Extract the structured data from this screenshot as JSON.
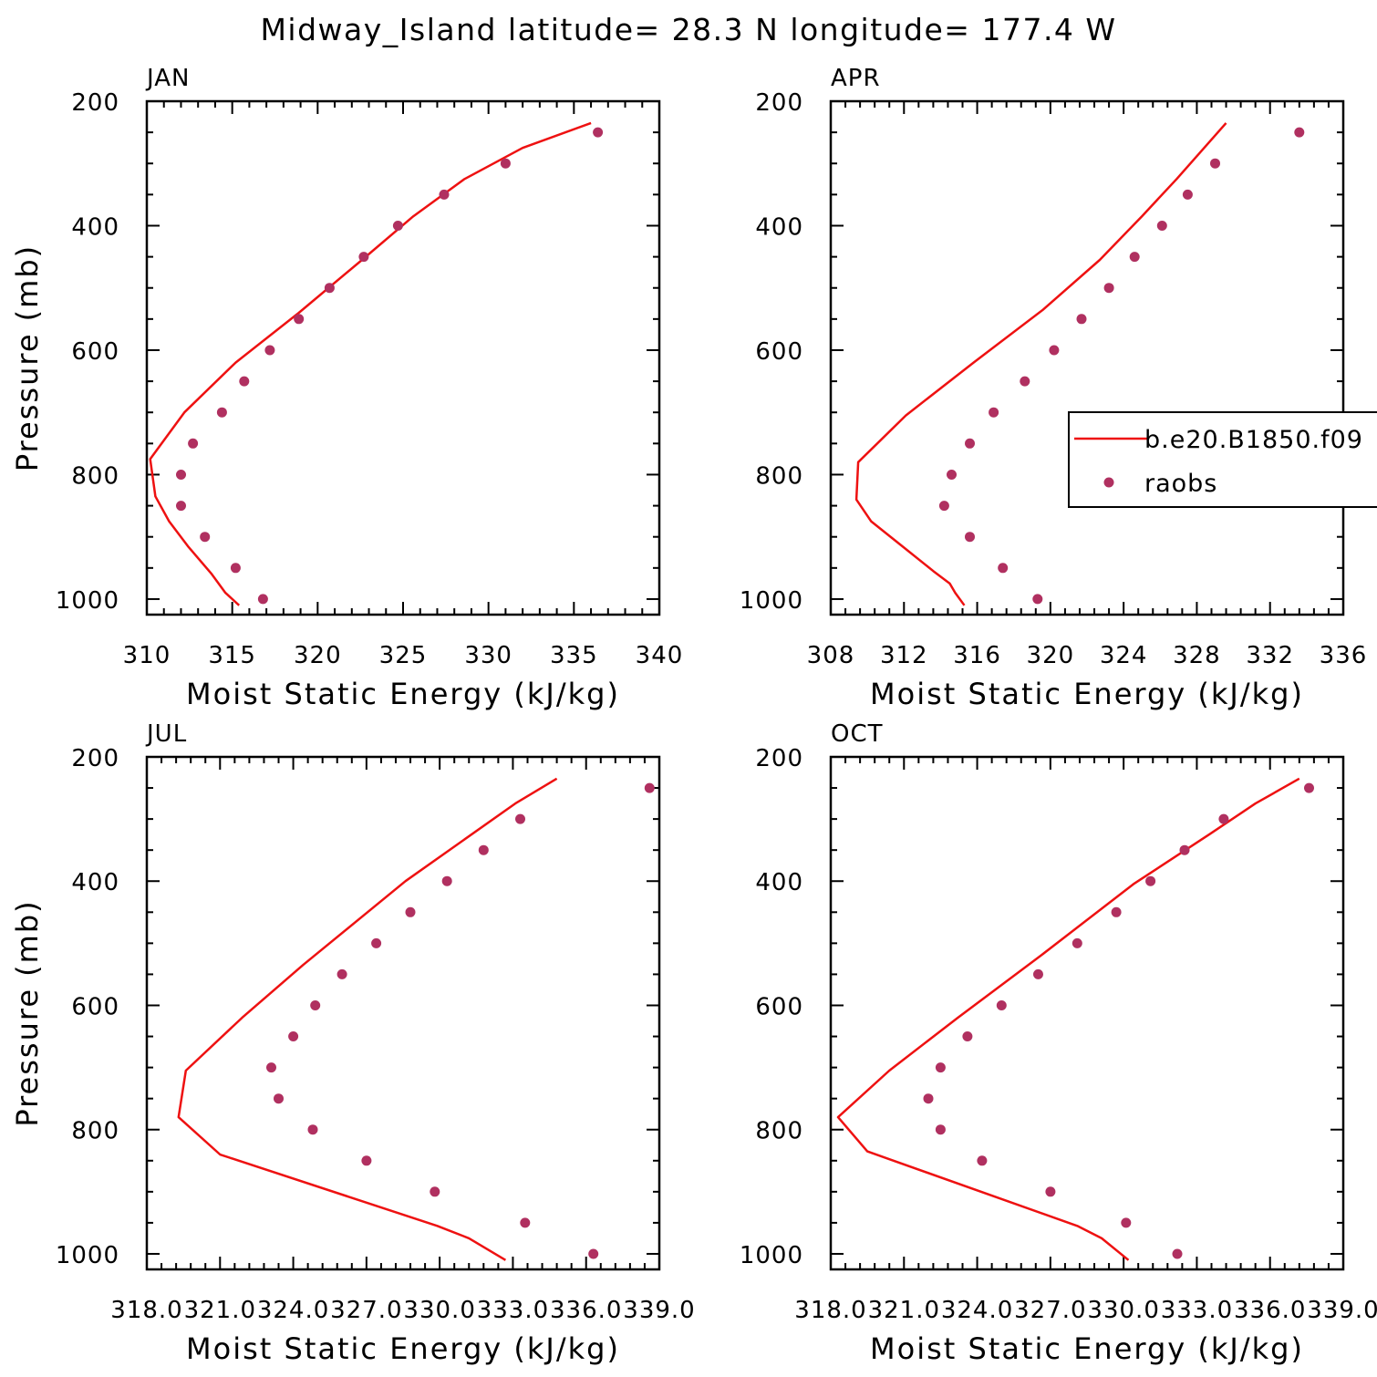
{
  "figure_title": "Midway_Island  latitude= 28.3 N longitude= 177.4 W",
  "colors": {
    "model": "#ee1111",
    "obs": "#b03060",
    "axis": "#000000"
  },
  "legend": {
    "model_label": "b.e20.B1850.f09",
    "obs_label": "raobs"
  },
  "chart_data": [
    {
      "type": "line",
      "panel_label": "JAN",
      "xlabel": "Moist Static Energy (kJ/kg)",
      "ylabel": "Pressure (mb)",
      "xlim": [
        310,
        340
      ],
      "ylim": [
        200,
        1025
      ],
      "x_ticks": [
        "310",
        "315",
        "320",
        "325",
        "330",
        "335",
        "340"
      ],
      "y_ticks": [
        "200",
        "400",
        "600",
        "800",
        "1000"
      ],
      "series": [
        {
          "name": "b.e20.B1850.f09",
          "kind": "line",
          "x": [
            315.4,
            314.6,
            313.8,
            312.4,
            311.3,
            310.5,
            310.2,
            312.2,
            315.2,
            318.9,
            322.6,
            325.6,
            328.6,
            332.0,
            336.0
          ],
          "y": [
            1010,
            990,
            960,
            915,
            875,
            835,
            775,
            700,
            620,
            540,
            455,
            385,
            325,
            275,
            235
          ]
        },
        {
          "name": "raobs",
          "kind": "points",
          "x": [
            316.8,
            315.2,
            313.4,
            312.0,
            312.0,
            312.7,
            314.4,
            315.7,
            317.2,
            318.9,
            320.7,
            322.7,
            324.7,
            327.4,
            331.0,
            336.4
          ],
          "y": [
            1000,
            950,
            900,
            850,
            800,
            750,
            700,
            650,
            600,
            550,
            500,
            450,
            400,
            350,
            300,
            250
          ]
        }
      ]
    },
    {
      "type": "line",
      "panel_label": "APR",
      "xlabel": "Moist Static Energy (kJ/kg)",
      "ylabel": "",
      "xlim": [
        308,
        336
      ],
      "ylim": [
        200,
        1025
      ],
      "x_ticks": [
        "308",
        "312",
        "316",
        "320",
        "324",
        "328",
        "332",
        "336"
      ],
      "y_ticks": [
        "200",
        "400",
        "600",
        "800",
        "1000"
      ],
      "series": [
        {
          "name": "b.e20.B1850.f09",
          "kind": "line",
          "x": [
            315.3,
            314.8,
            314.5,
            313.6,
            311.9,
            310.2,
            309.4,
            309.5,
            312.1,
            315.8,
            319.6,
            322.7,
            325.0,
            326.9,
            329.6
          ],
          "y": [
            1010,
            990,
            975,
            955,
            915,
            875,
            840,
            780,
            705,
            620,
            535,
            455,
            385,
            325,
            235
          ]
        },
        {
          "name": "raobs",
          "kind": "points",
          "x": [
            319.3,
            317.4,
            315.6,
            314.2,
            314.6,
            315.6,
            316.9,
            318.6,
            320.2,
            321.7,
            323.2,
            324.6,
            326.1,
            327.5,
            329.0,
            333.6
          ],
          "y": [
            1000,
            950,
            900,
            850,
            800,
            750,
            700,
            650,
            600,
            550,
            500,
            450,
            400,
            350,
            300,
            250
          ]
        }
      ]
    },
    {
      "type": "line",
      "panel_label": "JUL",
      "xlabel": "Moist Static Energy (kJ/kg)",
      "ylabel": "Pressure (mb)",
      "xlim": [
        318.0,
        339.0
      ],
      "ylim": [
        200,
        1025
      ],
      "x_ticks": [
        "318.0",
        "321.0",
        "324.0",
        "327.0",
        "330.0",
        "333.0",
        "336.0",
        "339.0"
      ],
      "y_ticks": [
        "200",
        "400",
        "600",
        "800",
        "1000"
      ],
      "series": [
        {
          "name": "b.e20.B1850.f09",
          "kind": "line",
          "x": [
            332.7,
            331.2,
            329.9,
            321.0,
            319.3,
            319.6,
            321.9,
            324.4,
            328.6,
            333.1,
            334.8
          ],
          "y": [
            1010,
            975,
            955,
            840,
            780,
            705,
            620,
            535,
            400,
            275,
            235
          ]
        },
        {
          "name": "raobs",
          "kind": "points",
          "x": [
            336.3,
            333.5,
            329.8,
            327.0,
            324.8,
            323.4,
            323.1,
            324.0,
            324.9,
            326.0,
            327.4,
            328.8,
            330.3,
            331.8,
            333.3,
            338.6
          ],
          "y": [
            1000,
            950,
            900,
            850,
            800,
            750,
            700,
            650,
            600,
            550,
            500,
            450,
            400,
            350,
            300,
            250
          ]
        }
      ]
    },
    {
      "type": "line",
      "panel_label": "OCT",
      "xlabel": "Moist Static Energy (kJ/kg)",
      "ylabel": "",
      "xlim": [
        318.0,
        339.0
      ],
      "ylim": [
        200,
        1025
      ],
      "x_ticks": [
        "318.0",
        "321.0",
        "324.0",
        "327.0",
        "330.0",
        "333.0",
        "336.0",
        "339.0"
      ],
      "y_ticks": [
        "200",
        "400",
        "600",
        "800",
        "1000"
      ],
      "series": [
        {
          "name": "b.e20.B1850.f09",
          "kind": "line",
          "x": [
            330.2,
            329.1,
            328.1,
            319.5,
            318.3,
            320.4,
            323.2,
            326.6,
            330.4,
            333.5,
            335.4,
            337.2
          ],
          "y": [
            1010,
            975,
            955,
            835,
            780,
            705,
            620,
            520,
            405,
            325,
            275,
            235
          ]
        },
        {
          "name": "raobs",
          "kind": "points",
          "x": [
            332.2,
            330.1,
            327.0,
            324.2,
            322.5,
            322.0,
            322.5,
            323.6,
            325.0,
            326.5,
            328.1,
            329.7,
            331.1,
            332.5,
            334.1,
            337.6
          ],
          "y": [
            1000,
            950,
            900,
            850,
            800,
            750,
            700,
            650,
            600,
            550,
            500,
            450,
            400,
            350,
            300,
            250
          ]
        }
      ]
    }
  ]
}
